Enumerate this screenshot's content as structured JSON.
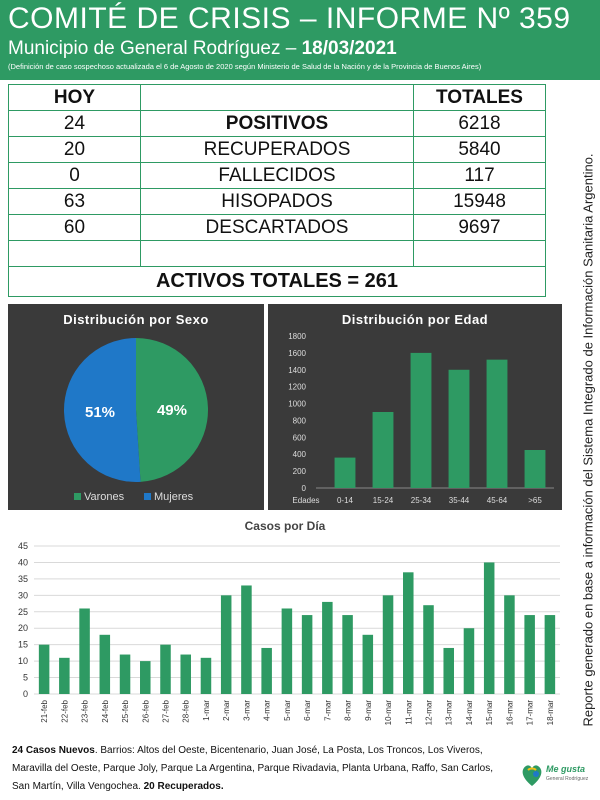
{
  "header": {
    "title": "COMITÉ DE CRISIS – INFORME Nº 359",
    "municipio": "Municipio de General Rodríguez – ",
    "date": "18/03/2021",
    "note": "(Definición de caso sospechoso actualizada el 6 de Agosto de 2020 según Ministerio de Salud de la Nación y de la Provincia de Buenos Aires)"
  },
  "table": {
    "hoy_label": "HOY",
    "totales_label": "TOTALES",
    "rows": [
      {
        "hoy": "24",
        "label": "POSITIVOS",
        "total": "6218"
      },
      {
        "hoy": "20",
        "label": "RECUPERADOS",
        "total": "5840"
      },
      {
        "hoy": "0",
        "label": "FALLECIDOS",
        "total": "117"
      },
      {
        "hoy": "63",
        "label": "HISOPADOS",
        "total": "15948"
      },
      {
        "hoy": "60",
        "label": "DESCARTADOS",
        "total": "9697"
      }
    ],
    "activos": "ACTIVOS TOTALES = 261"
  },
  "side_note": "Reporte generado en base a información del Sistema Integrado de Información Sanitaria Argentino.",
  "colors": {
    "green": "#2e9a63",
    "blue": "#1f78c8",
    "orange": "#e8901a",
    "panel": "#3a3a3a"
  },
  "chart_data": [
    {
      "type": "pie",
      "title": "Distribución por Sexo",
      "labels": [
        "Varones",
        "Mujeres"
      ],
      "values": [
        49,
        51
      ],
      "value_labels": [
        "49%",
        "51%"
      ],
      "legend": "bottom"
    },
    {
      "type": "bar",
      "title": "Distribución por Edad",
      "xlabel": "Edades",
      "categories": [
        "0-14",
        "15-24",
        "25-34",
        "35-44",
        "45-64",
        ">65"
      ],
      "values": [
        360,
        900,
        1600,
        1400,
        1520,
        450
      ],
      "ylim": [
        0,
        1800
      ],
      "yticks": [
        0,
        200,
        400,
        600,
        800,
        1000,
        1200,
        1400,
        1600,
        1800
      ]
    },
    {
      "type": "bar",
      "title": "Casos por Día",
      "categories": [
        "21-feb",
        "22-feb",
        "23-feb",
        "24-feb",
        "25-feb",
        "26-feb",
        "27-feb",
        "28-feb",
        "1-mar",
        "2-mar",
        "3-mar",
        "4-mar",
        "5-mar",
        "6-mar",
        "7-mar",
        "8-mar",
        "9-mar",
        "10-mar",
        "11-mar",
        "12-mar",
        "13-mar",
        "14-mar",
        "15-mar",
        "16-mar",
        "17-mar",
        "18-mar"
      ],
      "values": [
        15,
        11,
        26,
        18,
        12,
        10,
        15,
        12,
        11,
        30,
        33,
        14,
        26,
        24,
        28,
        24,
        18,
        30,
        37,
        27,
        14,
        20,
        40,
        30,
        24,
        24
      ],
      "ylim": [
        0,
        45
      ],
      "yticks": [
        0,
        5,
        10,
        15,
        20,
        25,
        30,
        35,
        40,
        45
      ],
      "grid": true
    }
  ],
  "footer": {
    "casos": "24 Casos Nuevos",
    "barrios": ". Barrios: Altos del Oeste, Bicentenario, Juan José, La Posta, Los Troncos, Los Viveros, Maravilla del Oeste, Parque Joly, Parque La Argentina, Parque Rivadavia, Planta Urbana, Raffo, San Carlos, San Martín, Villa Vengochea. ",
    "recuperados": "20 Recuperados."
  },
  "logo": {
    "text": "Me gusta",
    "sub": "General Rodríguez",
    "icon": "heart-leaf-icon"
  }
}
